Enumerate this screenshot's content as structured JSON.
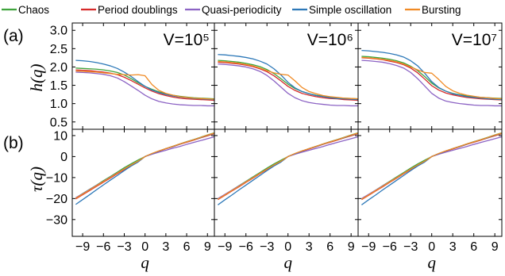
{
  "legend": [
    {
      "name": "Chaos",
      "color": "#3fa33c"
    },
    {
      "name": "Period doublings",
      "color": "#d62a2a"
    },
    {
      "name": "Quasi-periodicity",
      "color": "#8c63c4"
    },
    {
      "name": "Simple oscillation",
      "color": "#2d78b8"
    },
    {
      "name": "Bursting",
      "color": "#f08a24"
    }
  ],
  "panel_labels": {
    "a": "(a)",
    "b": "(b)"
  },
  "axis_labels": {
    "h": "h(q)",
    "tau": "τ(q)",
    "q": "q"
  },
  "volume_labels": [
    "V=10⁵",
    "V=10⁶",
    "V=10⁷"
  ],
  "chart_data": {
    "type": "line",
    "q": [
      -10,
      -9,
      -8,
      -7,
      -6,
      -5,
      -4,
      -3,
      -2,
      -1,
      0,
      1,
      2,
      3,
      4,
      5,
      6,
      7,
      8,
      9,
      10
    ],
    "x_ticks": [
      -9,
      -6,
      -3,
      0,
      3,
      6,
      9
    ],
    "x_tick_labels": [
      "−9",
      "−6",
      "−3",
      "0",
      "3",
      "6",
      "9"
    ],
    "xlim": [
      -10.5,
      10
    ],
    "top_row": {
      "ylabel": "h(q)",
      "ylim": [
        0.3,
        3.2
      ],
      "y_ticks": [
        0.5,
        1.0,
        1.5,
        2.0,
        2.5,
        3.0
      ],
      "y_tick_labels": [
        "0.5",
        "1.0",
        "1.5",
        "2.0",
        "2.5",
        "3.0"
      ]
    },
    "bottom_row": {
      "ylabel": "τ(q)",
      "ylim": [
        -38,
        13
      ],
      "y_ticks": [
        -30,
        -20,
        -10,
        0,
        10
      ],
      "y_tick_labels": [
        "−30",
        "−20",
        "−10",
        "0",
        "10"
      ]
    },
    "panels": [
      {
        "volume": "V=10⁵",
        "h_series": [
          {
            "name": "Chaos",
            "values": [
              1.97,
              1.96,
              1.95,
              1.94,
              1.92,
              1.89,
              1.85,
              1.78,
              1.68,
              1.57,
              1.47,
              1.39,
              1.32,
              1.27,
              1.23,
              1.2,
              1.18,
              1.16,
              1.15,
              1.14,
              1.13
            ]
          },
          {
            "name": "Period doublings",
            "values": [
              1.92,
              1.91,
              1.9,
              1.88,
              1.86,
              1.83,
              1.79,
              1.72,
              1.63,
              1.53,
              1.43,
              1.34,
              1.27,
              1.22,
              1.18,
              1.15,
              1.13,
              1.12,
              1.11,
              1.1,
              1.09
            ]
          },
          {
            "name": "Quasi-periodicity",
            "values": [
              1.86,
              1.85,
              1.84,
              1.82,
              1.8,
              1.76,
              1.7,
              1.6,
              1.48,
              1.36,
              1.23,
              1.13,
              1.06,
              1.02,
              0.99,
              0.97,
              0.96,
              0.95,
              0.95,
              0.94,
              0.94
            ]
          },
          {
            "name": "Simple oscillation",
            "values": [
              2.18,
              2.17,
              2.15,
              2.12,
              2.08,
              2.03,
              1.96,
              1.86,
              1.74,
              1.6,
              1.47,
              1.37,
              1.3,
              1.25,
              1.21,
              1.18,
              1.16,
              1.14,
              1.13,
              1.12,
              1.11
            ]
          },
          {
            "name": "Bursting",
            "values": [
              1.89,
              1.88,
              1.87,
              1.86,
              1.84,
              1.82,
              1.8,
              1.79,
              1.78,
              1.79,
              1.76,
              1.52,
              1.36,
              1.28,
              1.23,
              1.19,
              1.17,
              1.15,
              1.14,
              1.13,
              1.12
            ]
          }
        ],
        "tau_series": [
          {
            "name": "Chaos",
            "values": [
              -19.7,
              -17.6,
              -15.6,
              -13.6,
              -11.5,
              -9.5,
              -7.4,
              -5.3,
              -3.4,
              -1.6,
              0,
              1.4,
              2.6,
              3.8,
              4.9,
              6,
              7.1,
              8.1,
              9.2,
              10.3,
              11.3
            ]
          },
          {
            "name": "Period doublings",
            "values": [
              -20.2,
              -18.2,
              -16.2,
              -14.2,
              -12.2,
              -10.2,
              -8.2,
              -6.2,
              -4.3,
              -2.5,
              0,
              1.3,
              2.5,
              3.7,
              4.7,
              5.8,
              6.8,
              7.8,
              8.9,
              9.9,
              10.9
            ]
          },
          {
            "name": "Quasi-periodicity",
            "values": [
              -19.6,
              -17.7,
              -15.7,
              -13.7,
              -11.8,
              -9.8,
              -7.8,
              -5.9,
              -4,
              -2.4,
              0,
              1.1,
              2.1,
              3,
              4,
              4.8,
              5.8,
              6.7,
              7.6,
              8.5,
              9.4
            ]
          },
          {
            "name": "Simple oscillation",
            "values": [
              -22.8,
              -20.5,
              -18.2,
              -15.8,
              -13.5,
              -11.2,
              -9.0,
              -6.7,
              -4.5,
              -2.6,
              0,
              1.4,
              2.6,
              3.8,
              4.8,
              5.9,
              7.0,
              8.0,
              9.0,
              10.1,
              11.1
            ]
          },
          {
            "name": "Bursting",
            "values": [
              -19.9,
              -17.9,
              -15.9,
              -13.9,
              -11.9,
              -9.9,
              -7.9,
              -5.9,
              -4,
              -2.2,
              0,
              1.5,
              2.7,
              3.8,
              4.9,
              6,
              7,
              8,
              9.1,
              10.2,
              11.2
            ]
          }
        ]
      },
      {
        "volume": "V=10⁶",
        "h_series": [
          {
            "name": "Chaos",
            "values": [
              2.18,
              2.17,
              2.15,
              2.13,
              2.1,
              2.06,
              2.01,
              1.93,
              1.82,
              1.68,
              1.53,
              1.41,
              1.33,
              1.27,
              1.23,
              1.2,
              1.18,
              1.16,
              1.15,
              1.14,
              1.13
            ]
          },
          {
            "name": "Period doublings",
            "values": [
              2.13,
              2.12,
              2.1,
              2.08,
              2.05,
              2.01,
              1.95,
              1.87,
              1.76,
              1.62,
              1.47,
              1.36,
              1.28,
              1.23,
              1.19,
              1.16,
              1.14,
              1.13,
              1.11,
              1.1,
              1.09
            ]
          },
          {
            "name": "Quasi-periodicity",
            "values": [
              2.08,
              2.07,
              2.05,
              2.03,
              2.0,
              1.95,
              1.88,
              1.77,
              1.62,
              1.45,
              1.28,
              1.16,
              1.08,
              1.03,
              1.0,
              0.98,
              0.96,
              0.95,
              0.95,
              0.94,
              0.94
            ]
          },
          {
            "name": "Simple oscillation",
            "values": [
              2.34,
              2.33,
              2.31,
              2.29,
              2.26,
              2.22,
              2.16,
              2.08,
              1.95,
              1.78,
              1.58,
              1.43,
              1.33,
              1.27,
              1.22,
              1.19,
              1.16,
              1.14,
              1.13,
              1.12,
              1.11
            ]
          },
          {
            "name": "Bursting",
            "values": [
              2.15,
              2.14,
              2.12,
              2.1,
              2.07,
              2.03,
              1.97,
              1.9,
              1.84,
              1.8,
              1.78,
              1.62,
              1.44,
              1.33,
              1.27,
              1.22,
              1.19,
              1.17,
              1.15,
              1.14,
              1.13
            ]
          }
        ],
        "tau_series": [
          {
            "name": "Chaos",
            "values": [
              -20.2,
              -18.1,
              -16.0,
              -13.9,
              -11.8,
              -9.7,
              -7.6,
              -5.5,
              -3.5,
              -1.7,
              0,
              1.4,
              2.6,
              3.8,
              4.9,
              6,
              7.1,
              8.1,
              9.2,
              10.3,
              11.3
            ]
          },
          {
            "name": "Period doublings",
            "values": [
              -20.5,
              -18.5,
              -16.4,
              -14.4,
              -12.3,
              -10.3,
              -8.2,
              -6.2,
              -4.3,
              -2.5,
              0,
              1.3,
              2.5,
              3.6,
              4.7,
              5.8,
              6.8,
              7.8,
              8.9,
              9.9,
              10.9
            ]
          },
          {
            "name": "Quasi-periodicity",
            "values": [
              -20.0,
              -18.0,
              -16.0,
              -14.0,
              -12.0,
              -10.0,
              -8.0,
              -6.0,
              -4.1,
              -2.4,
              0,
              1.1,
              2.1,
              3.0,
              3.9,
              4.8,
              5.8,
              6.7,
              7.6,
              8.5,
              9.4
            ]
          },
          {
            "name": "Simple oscillation",
            "values": [
              -23.0,
              -20.6,
              -18.3,
              -15.9,
              -13.6,
              -11.3,
              -9.0,
              -6.7,
              -4.5,
              -2.6,
              0,
              1.4,
              2.6,
              3.8,
              4.8,
              5.9,
              7.0,
              8.0,
              9.0,
              10.1,
              11.1
            ]
          },
          {
            "name": "Bursting",
            "values": [
              -20.3,
              -18.3,
              -16.2,
              -14.2,
              -12.1,
              -10.1,
              -8.0,
              -6.0,
              -4.0,
              -2.2,
              0,
              1.5,
              2.7,
              3.8,
              4.9,
              6,
              7,
              8,
              9.1,
              10.2,
              11.2
            ]
          }
        ]
      },
      {
        "volume": "V=10⁷",
        "h_series": [
          {
            "name": "Chaos",
            "values": [
              2.29,
              2.28,
              2.26,
              2.24,
              2.21,
              2.17,
              2.11,
              2.02,
              1.9,
              1.74,
              1.56,
              1.43,
              1.34,
              1.28,
              1.24,
              1.21,
              1.19,
              1.17,
              1.16,
              1.15,
              1.14
            ]
          },
          {
            "name": "Period doublings",
            "values": [
              2.25,
              2.24,
              2.22,
              2.2,
              2.16,
              2.12,
              2.06,
              1.97,
              1.84,
              1.67,
              1.49,
              1.37,
              1.29,
              1.24,
              1.2,
              1.17,
              1.15,
              1.13,
              1.12,
              1.11,
              1.1
            ]
          },
          {
            "name": "Quasi-periodicity",
            "values": [
              2.18,
              2.17,
              2.15,
              2.13,
              2.09,
              2.04,
              1.97,
              1.85,
              1.68,
              1.48,
              1.28,
              1.15,
              1.07,
              1.03,
              1.0,
              0.98,
              0.96,
              0.95,
              0.95,
              0.94,
              0.94
            ]
          },
          {
            "name": "Simple oscillation",
            "values": [
              2.45,
              2.44,
              2.42,
              2.4,
              2.37,
              2.33,
              2.27,
              2.17,
              2.03,
              1.83,
              1.6,
              1.44,
              1.34,
              1.27,
              1.23,
              1.19,
              1.17,
              1.15,
              1.13,
              1.12,
              1.11
            ]
          },
          {
            "name": "Bursting",
            "values": [
              2.26,
              2.25,
              2.23,
              2.21,
              2.18,
              2.14,
              2.08,
              2.0,
              1.92,
              1.85,
              1.83,
              1.66,
              1.47,
              1.35,
              1.28,
              1.23,
              1.2,
              1.17,
              1.16,
              1.14,
              1.13
            ]
          }
        ],
        "tau_series": [
          {
            "name": "Chaos",
            "values": [
              -20.2,
              -18.1,
              -16.0,
              -13.9,
              -11.8,
              -9.7,
              -7.6,
              -5.5,
              -3.5,
              -1.7,
              0,
              1.4,
              2.6,
              3.8,
              4.9,
              6,
              7.1,
              8.1,
              9.2,
              10.3,
              11.3
            ]
          },
          {
            "name": "Period doublings",
            "values": [
              -20.5,
              -18.5,
              -16.4,
              -14.4,
              -12.3,
              -10.3,
              -8.2,
              -6.2,
              -4.3,
              -2.5,
              0,
              1.3,
              2.5,
              3.6,
              4.7,
              5.8,
              6.8,
              7.8,
              8.9,
              9.9,
              10.9
            ]
          },
          {
            "name": "Quasi-periodicity",
            "values": [
              -20.0,
              -18.0,
              -16.0,
              -14.0,
              -12.0,
              -10.0,
              -8.0,
              -6.0,
              -4.1,
              -2.4,
              0,
              1.1,
              2.1,
              3.0,
              3.9,
              4.8,
              5.8,
              6.7,
              7.6,
              8.5,
              9.4
            ]
          },
          {
            "name": "Simple oscillation",
            "values": [
              -23.0,
              -20.6,
              -18.3,
              -15.9,
              -13.6,
              -11.3,
              -9.0,
              -6.7,
              -4.5,
              -2.6,
              0,
              1.4,
              2.6,
              3.8,
              4.8,
              5.9,
              7.0,
              8.0,
              9.0,
              10.1,
              11.1
            ]
          },
          {
            "name": "Bursting",
            "values": [
              -20.3,
              -18.3,
              -16.2,
              -14.2,
              -12.1,
              -10.1,
              -8.0,
              -6.0,
              -4.0,
              -2.2,
              0,
              1.5,
              2.7,
              3.8,
              4.9,
              6,
              7,
              8,
              9.1,
              10.2,
              11.2
            ]
          }
        ]
      }
    ]
  }
}
